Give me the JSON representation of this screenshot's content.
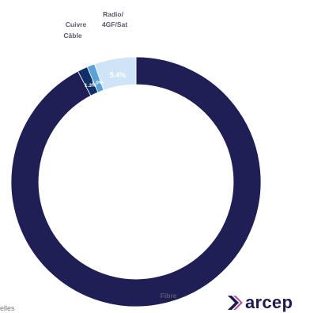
{
  "chart_data": {
    "type": "donut",
    "series": [
      {
        "category": "Fibre",
        "value": 92.3,
        "label": "92.3%",
        "color": "#1f1f55",
        "label_color": "#ffffff"
      },
      {
        "category": "Câble",
        "value": 1.3,
        "label": "1.3%",
        "color": "#0f2f66",
        "label_color": "#ffffff"
      },
      {
        "category": "Cuivre",
        "value": 1.0,
        "label": "1.0%",
        "color": "#5aa1d8",
        "label_color": "#ffffff"
      },
      {
        "category": "Radio/\n4GF/Sat",
        "value": 5.4,
        "label": "5.4%",
        "color": "#cfe4f7",
        "label_color": "#ffffff"
      }
    ]
  },
  "footnote": "elles",
  "logo": {
    "text": "arcep",
    "mark_icon": "arcep-chevron-icon",
    "text_color": "#1f1a4d"
  }
}
